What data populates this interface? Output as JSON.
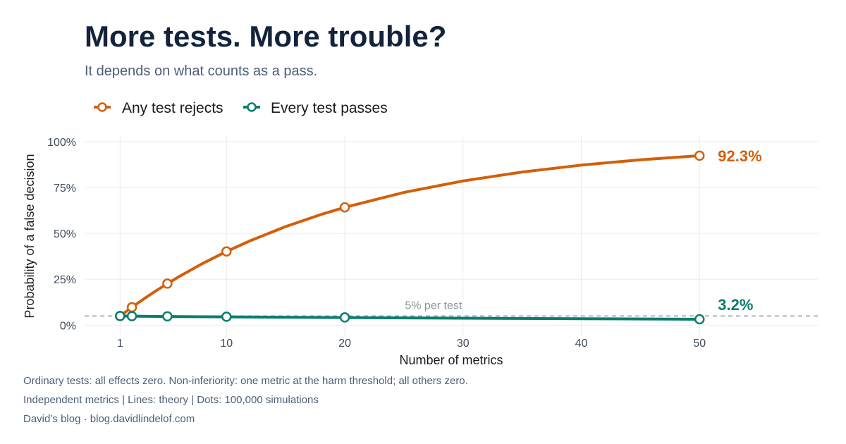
{
  "chart_data": {
    "type": "line",
    "title": "More tests. More trouble?",
    "subtitle": "It depends on what counts as a pass.",
    "xlabel": "Number of metrics",
    "ylabel": "Probability of a false decision",
    "xlim": [
      -2,
      60
    ],
    "ylim": [
      -0.06,
      1.03
    ],
    "x_ticks": [
      1,
      10,
      20,
      30,
      40,
      50
    ],
    "y_ticks": [
      0,
      0.25,
      0.5,
      0.75,
      1.0
    ],
    "y_tick_labels": [
      "0%",
      "25%",
      "50%",
      "75%",
      "100%"
    ],
    "grid": true,
    "legend_position": "top-left",
    "series": [
      {
        "name": "Any test rejects",
        "color": "#d35f0a",
        "line_x": [
          1,
          2,
          3,
          4,
          5,
          6,
          8,
          10,
          12,
          15,
          18,
          20,
          25,
          30,
          35,
          40,
          45,
          50
        ],
        "line_y": [
          0.05,
          0.0975,
          0.1426,
          0.1855,
          0.2262,
          0.2649,
          0.3366,
          0.4013,
          0.4596,
          0.5367,
          0.6028,
          0.6415,
          0.7226,
          0.7854,
          0.8339,
          0.8715,
          0.9006,
          0.9231
        ],
        "points_x": [
          1,
          2,
          5,
          10,
          20,
          50
        ],
        "points_y": [
          0.05,
          0.0975,
          0.2262,
          0.4013,
          0.6415,
          0.9231
        ],
        "end_label": "92.3%"
      },
      {
        "name": "Every test passes",
        "color": "#0b7d6e",
        "line_x": [
          1,
          2,
          5,
          10,
          20,
          30,
          40,
          50
        ],
        "line_y": [
          0.05,
          0.049,
          0.047,
          0.045,
          0.041,
          0.038,
          0.035,
          0.032
        ],
        "points_x": [
          1,
          2,
          5,
          10,
          20,
          50
        ],
        "points_y": [
          0.05,
          0.049,
          0.048,
          0.046,
          0.042,
          0.032
        ],
        "end_label": "3.2%"
      }
    ],
    "reference_line": {
      "y": 0.05,
      "label": "5% per test",
      "color": "#9aa3ae"
    },
    "captions": [
      "Ordinary tests: all effects zero. Non-inferiority: one metric at the harm threshold; all others zero.",
      "Independent metrics | Lines: theory | Dots: 100,000 simulations",
      "David’s blog · blog.davidlindelof.com"
    ]
  }
}
